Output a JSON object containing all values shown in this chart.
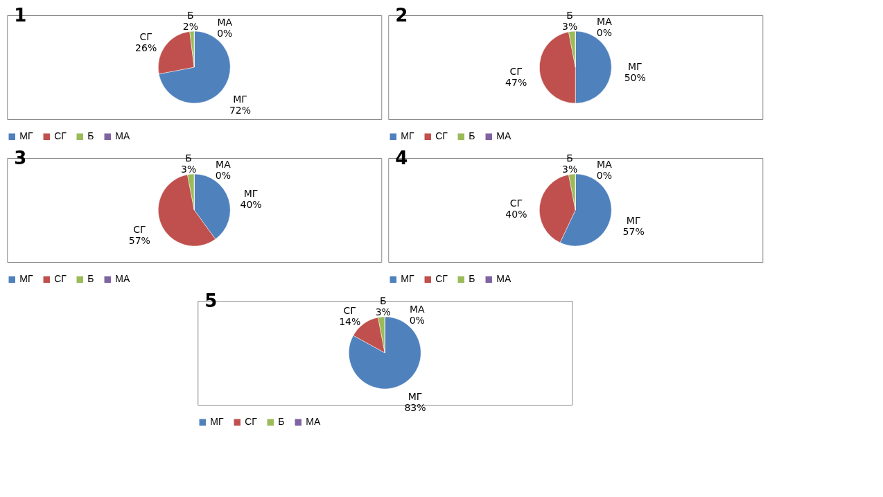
{
  "chart_data": [
    {
      "type": "pie",
      "title": "1",
      "categories": [
        "МГ",
        "СГ",
        "Б",
        "МА"
      ],
      "values": [
        72,
        26,
        2,
        0
      ],
      "value_labels": [
        "72%",
        "26%",
        "2%",
        "0%"
      ],
      "colors": [
        "#4f81bd",
        "#c0504d",
        "#9bbb59",
        "#8064a2"
      ],
      "legend": "bottom"
    },
    {
      "type": "pie",
      "title": "2",
      "categories": [
        "МГ",
        "СГ",
        "Б",
        "МА"
      ],
      "values": [
        50,
        47,
        3,
        0
      ],
      "value_labels": [
        "50%",
        "47%",
        "3%",
        "0%"
      ],
      "colors": [
        "#4f81bd",
        "#c0504d",
        "#9bbb59",
        "#8064a2"
      ],
      "legend": "bottom"
    },
    {
      "type": "pie",
      "title": "3",
      "categories": [
        "МГ",
        "СГ",
        "Б",
        "МА"
      ],
      "values": [
        40,
        57,
        3,
        0
      ],
      "value_labels": [
        "40%",
        "57%",
        "3%",
        "0%"
      ],
      "colors": [
        "#4f81bd",
        "#c0504d",
        "#9bbb59",
        "#8064a2"
      ],
      "legend": "bottom"
    },
    {
      "type": "pie",
      "title": "4",
      "categories": [
        "МГ",
        "СГ",
        "Б",
        "МА"
      ],
      "values": [
        57,
        40,
        3,
        0
      ],
      "value_labels": [
        "57%",
        "40%",
        "3%",
        "0%"
      ],
      "colors": [
        "#4f81bd",
        "#c0504d",
        "#9bbb59",
        "#8064a2"
      ],
      "legend": "bottom"
    },
    {
      "type": "pie",
      "title": "5",
      "categories": [
        "МГ",
        "СГ",
        "Б",
        "МА"
      ],
      "values": [
        83,
        14,
        3,
        0
      ],
      "value_labels": [
        "83%",
        "14%",
        "3%",
        "0%"
      ],
      "colors": [
        "#4f81bd",
        "#c0504d",
        "#9bbb59",
        "#8064a2"
      ],
      "legend": "bottom"
    }
  ]
}
